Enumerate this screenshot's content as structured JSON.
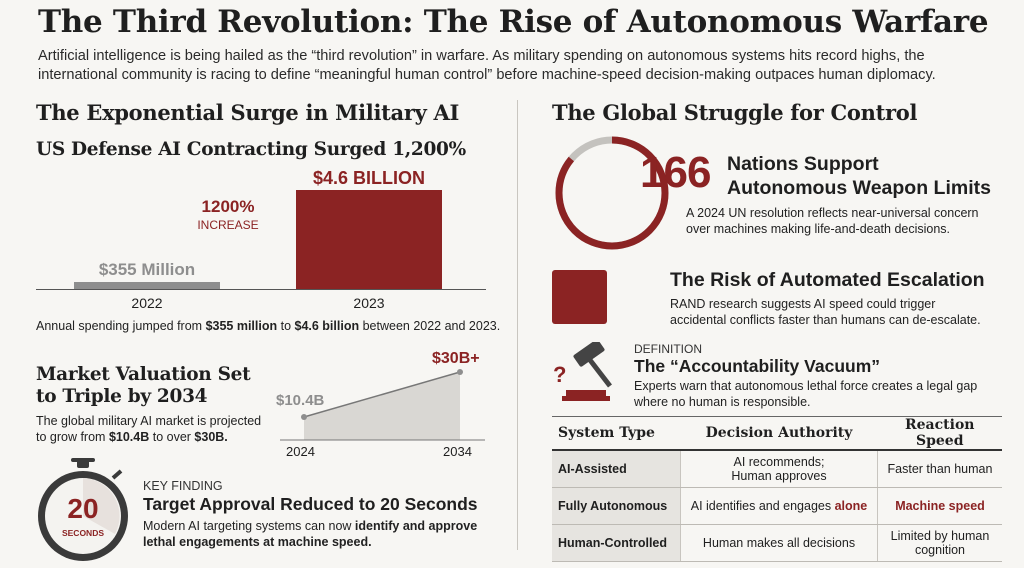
{
  "header": {
    "title": "The Third Revolution: The Rise of Autonomous Warfare",
    "subtitle": "Artificial intelligence is being hailed as the “third revolution” in warfare. As military spending on autonomous systems hits record highs, the international community is racing to define “meaningful human control” before machine-speed decision-making outpaces human diplomacy."
  },
  "left": {
    "section_title": "The Exponential Surge in Military AI",
    "contracting": {
      "title": "US Defense AI Contracting Surged 1,200%",
      "increase_pct": "1200%",
      "increase_word": "INCREASE",
      "old_label": "$355 Million",
      "new_label": "$4.6 BILLION",
      "old_year": "2022",
      "new_year": "2023",
      "caption_pre": "Annual spending jumped from ",
      "caption_b1": "$355 million",
      "caption_mid": " to ",
      "caption_b2": "$4.6 billion",
      "caption_post": " between 2022 and 2023."
    },
    "market": {
      "title_line1": "Market Valuation Set",
      "title_line2": "to Triple by 2034",
      "desc_line1": "The global military AI market is projected",
      "desc_line2_pre": "to grow from ",
      "desc_b1": "$10.4B",
      "desc_mid": " to over ",
      "desc_b2": "$30B.",
      "start_label": "$10.4B",
      "end_label": "$30B+",
      "start_year": "2024",
      "end_year": "2034"
    },
    "key_finding": {
      "eyebrow": "KEY FINDING",
      "title": "Target Approval Reduced to 20 Seconds",
      "desc_line1_pre": "Modern AI targeting systems can now ",
      "desc_b1": "identify and approve",
      "desc_line2": "lethal engagements at machine speed.",
      "timer_number": "20",
      "timer_unit": "SECONDS"
    }
  },
  "right": {
    "section_title": "The Global Struggle for Control",
    "nations": {
      "count": "166",
      "title_line1": "Nations Support",
      "title_line2": "Autonomous Weapon Limits",
      "desc_line1": "A 2024 UN resolution reflects near-universal concern",
      "desc_line2": "over machines making life-and-death decisions.",
      "support_fraction": 0.86
    },
    "escalation": {
      "title": "The Risk of Automated Escalation",
      "desc_line1": "RAND research suggests AI speed could trigger",
      "desc_line2": "accidental conflicts faster than humans can de-escalate."
    },
    "accountability": {
      "eyebrow": "DEFINITION",
      "title": "The “Accountability Vacuum”",
      "desc_line1": "Experts warn that autonomous lethal force creates a legal gap",
      "desc_line2": "where no human is responsible."
    },
    "table": {
      "headers": [
        "System Type",
        "Decision Authority",
        "Reaction Speed"
      ],
      "rows": [
        {
          "type": "AI-Assisted",
          "authority_1": "AI recommends;",
          "authority_2": "Human approves",
          "speed_1": "Faster than human",
          "speed_2": ""
        },
        {
          "type": "Fully Autonomous",
          "authority_pre": "AI identifies and engages ",
          "authority_em": "alone",
          "speed_em": "Machine speed"
        },
        {
          "type": "Human-Controlled",
          "authority_1": "Human makes all decisions",
          "speed_1": "Limited by human",
          "speed_2": "cognition"
        }
      ]
    }
  },
  "colors": {
    "accent": "#8b2323",
    "neutral": "#8e8e8e",
    "background": "#f7f6f3"
  },
  "icons": [
    "gavel-icon",
    "question-mark-icon",
    "stopwatch-icon",
    "donut-ring-icon"
  ]
}
